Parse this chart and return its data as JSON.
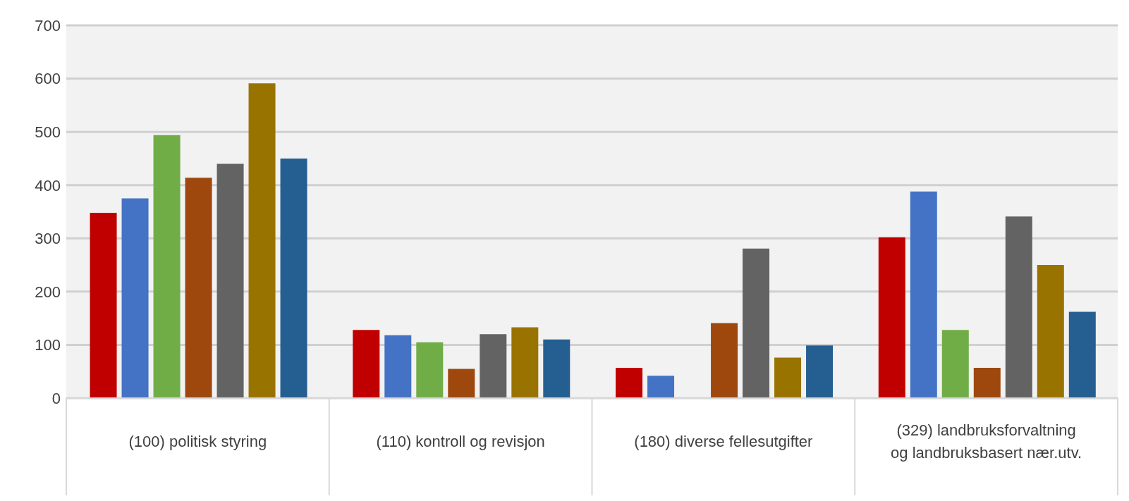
{
  "chart_data": {
    "type": "bar",
    "categories": [
      "(100) politisk styring",
      "(110) kontroll og revisjon",
      "(180) diverse fellesutgifter",
      "(329) landbruksforvaltning og landbruksbasert nær.utv."
    ],
    "series": [
      {
        "color": "#c00000",
        "values": [
          348,
          128,
          57,
          302
        ]
      },
      {
        "color": "#4472c4",
        "values": [
          375,
          118,
          42,
          388
        ]
      },
      {
        "color": "#70ad47",
        "values": [
          494,
          105,
          null,
          128
        ]
      },
      {
        "color": "#9e480e",
        "values": [
          414,
          55,
          141,
          57
        ]
      },
      {
        "color": "#636363",
        "values": [
          440,
          120,
          281,
          341
        ]
      },
      {
        "color": "#997300",
        "values": [
          591,
          133,
          76,
          250
        ]
      },
      {
        "color": "#255e91",
        "values": [
          450,
          110,
          99,
          162
        ]
      }
    ],
    "ylim": [
      0,
      700
    ],
    "yticks": [
      0,
      100,
      200,
      300,
      400,
      500,
      600,
      700
    ],
    "grid": "y",
    "legend": false
  }
}
